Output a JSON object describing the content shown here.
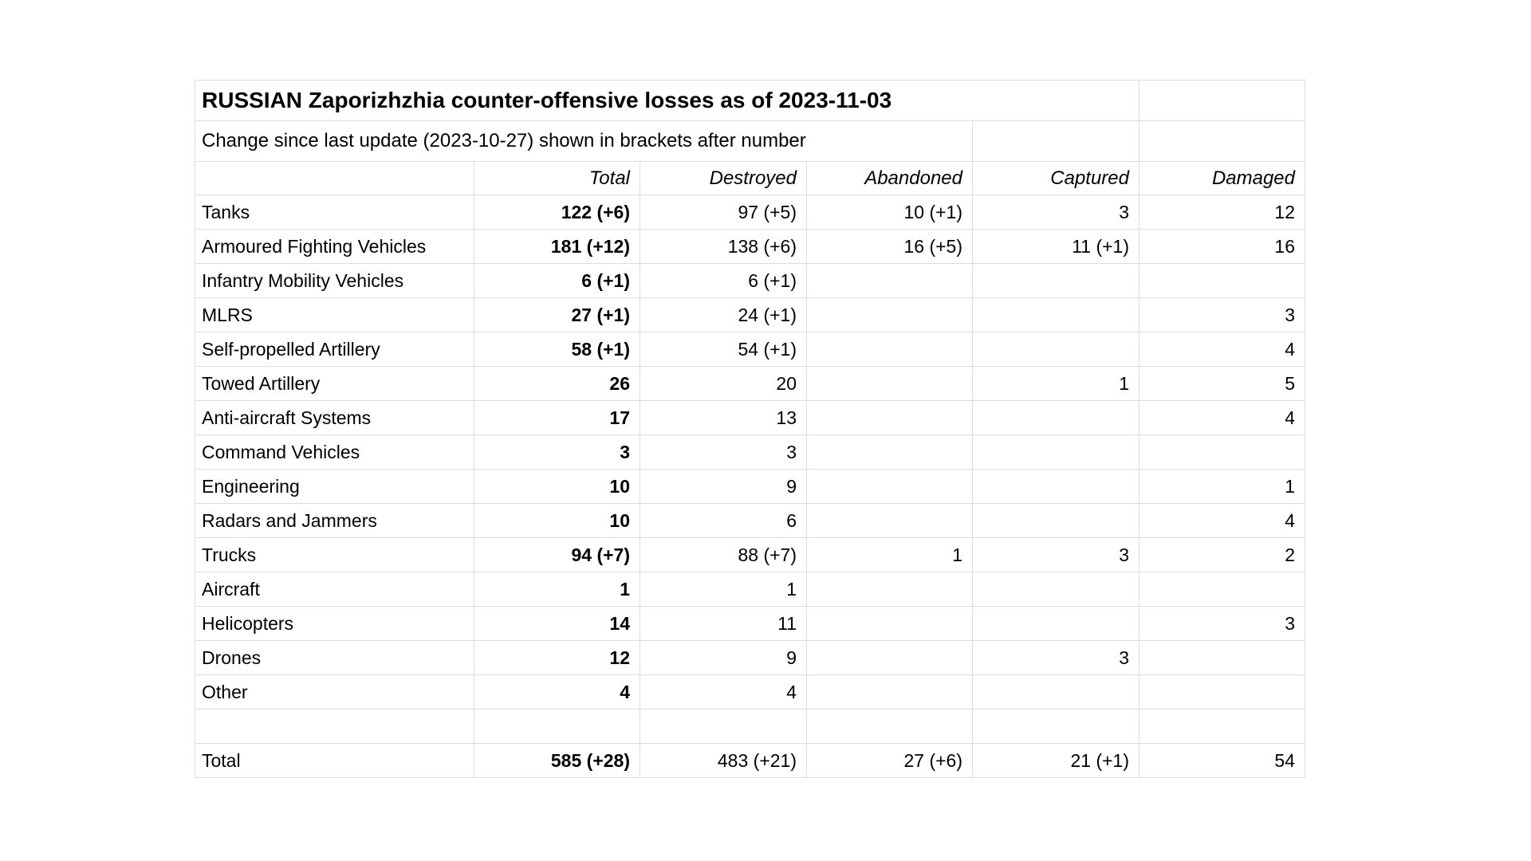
{
  "page": {
    "title": "RUSSIAN Zaporizhzhia counter-offensive losses as of 2023-11-03",
    "subtitle": "Change since last update (2023-10-27) shown in brackets after number"
  },
  "colors": {
    "background": "#ffffff",
    "grid_border": "#dcdcdc",
    "text": "#000000"
  },
  "table": {
    "column_headers": [
      "",
      "Total",
      "Destroyed",
      "Abandoned",
      "Captured",
      "Damaged"
    ],
    "rows": [
      {
        "label": "Tanks",
        "total": "122 (+6)",
        "destroyed": "97 (+5)",
        "abandoned": "10 (+1)",
        "captured": "3",
        "damaged": "12"
      },
      {
        "label": "Armoured Fighting Vehicles",
        "total": "181 (+12)",
        "destroyed": "138 (+6)",
        "abandoned": "16 (+5)",
        "captured": "11 (+1)",
        "damaged": "16"
      },
      {
        "label": "Infantry Mobility Vehicles",
        "total": "6 (+1)",
        "destroyed": "6 (+1)",
        "abandoned": "",
        "captured": "",
        "damaged": ""
      },
      {
        "label": "MLRS",
        "total": "27 (+1)",
        "destroyed": "24 (+1)",
        "abandoned": "",
        "captured": "",
        "damaged": "3"
      },
      {
        "label": "Self-propelled Artillery",
        "total": "58 (+1)",
        "destroyed": "54 (+1)",
        "abandoned": "",
        "captured": "",
        "damaged": "4"
      },
      {
        "label": "Towed Artillery",
        "total": "26",
        "destroyed": "20",
        "abandoned": "",
        "captured": "1",
        "damaged": "5"
      },
      {
        "label": "Anti-aircraft Systems",
        "total": "17",
        "destroyed": "13",
        "abandoned": "",
        "captured": "",
        "damaged": "4"
      },
      {
        "label": "Command Vehicles",
        "total": "3",
        "destroyed": "3",
        "abandoned": "",
        "captured": "",
        "damaged": ""
      },
      {
        "label": "Engineering",
        "total": "10",
        "destroyed": "9",
        "abandoned": "",
        "captured": "",
        "damaged": "1"
      },
      {
        "label": "Radars and Jammers",
        "total": "10",
        "destroyed": "6",
        "abandoned": "",
        "captured": "",
        "damaged": "4"
      },
      {
        "label": "Trucks",
        "total": "94 (+7)",
        "destroyed": "88 (+7)",
        "abandoned": "1",
        "captured": "3",
        "damaged": "2"
      },
      {
        "label": "Aircraft",
        "total": "1",
        "destroyed": "1",
        "abandoned": "",
        "captured": "",
        "damaged": ""
      },
      {
        "label": "Helicopters",
        "total": "14",
        "destroyed": "11",
        "abandoned": "",
        "captured": "",
        "damaged": "3"
      },
      {
        "label": "Drones",
        "total": "12",
        "destroyed": "9",
        "abandoned": "",
        "captured": "3",
        "damaged": ""
      },
      {
        "label": "Other",
        "total": "4",
        "destroyed": "4",
        "abandoned": "",
        "captured": "",
        "damaged": ""
      }
    ],
    "spacer_row": {
      "label": "",
      "total": "",
      "destroyed": "",
      "abandoned": "",
      "captured": "",
      "damaged": ""
    },
    "total_row": {
      "label": "Total",
      "total": "585 (+28)",
      "destroyed": "483 (+21)",
      "abandoned": "27 (+6)",
      "captured": "21 (+1)",
      "damaged": "54"
    }
  }
}
